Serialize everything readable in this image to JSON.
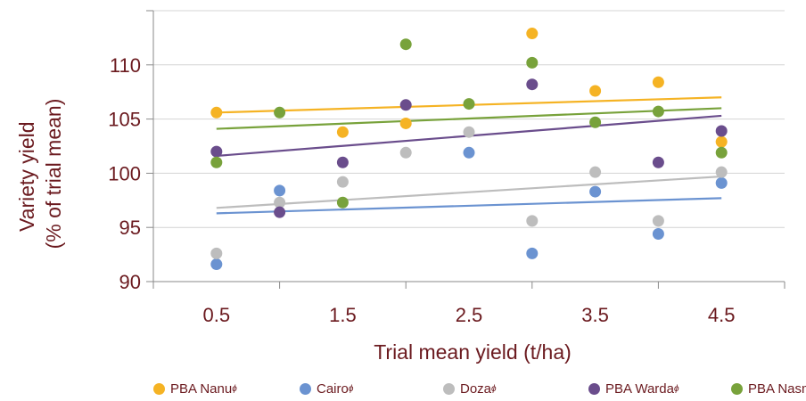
{
  "chart_data": {
    "type": "scatter",
    "xlabel": "Trial mean yield (t/ha)",
    "ylabel_lines": [
      "Variety yield",
      "(% of trial mean)"
    ],
    "x_ticks": [
      "0.5",
      "1.5",
      "2.5",
      "3.5",
      "4.5"
    ],
    "y_ticks": [
      "90",
      "95",
      "100",
      "105",
      "110"
    ],
    "xlim": [
      0,
      5
    ],
    "ylim": [
      90,
      115
    ],
    "grid": "horizontal",
    "legend_position": "bottom",
    "trendlines": true,
    "series": [
      {
        "name": "PBA Nanu",
        "mark": "ϕ",
        "color": "#f5b324",
        "points": [
          [
            0.5,
            105.6
          ],
          [
            1.5,
            103.8
          ],
          [
            2.0,
            104.6
          ],
          [
            3.0,
            112.9
          ],
          [
            3.5,
            107.6
          ],
          [
            4.0,
            108.4
          ],
          [
            4.5,
            102.9
          ]
        ],
        "trend": [
          [
            0.5,
            105.6
          ],
          [
            4.5,
            107.0
          ]
        ]
      },
      {
        "name": "Cairo",
        "mark": "ϕ",
        "color": "#6b93d1",
        "points": [
          [
            0.5,
            91.6
          ],
          [
            1.0,
            98.4
          ],
          [
            2.5,
            101.9
          ],
          [
            3.0,
            92.6
          ],
          [
            3.5,
            98.3
          ],
          [
            4.0,
            94.4
          ],
          [
            4.5,
            99.1
          ]
        ],
        "trend": [
          [
            0.5,
            96.3
          ],
          [
            4.5,
            97.7
          ]
        ]
      },
      {
        "name": "Doza",
        "mark": "ϕ",
        "color": "#bdbdbd",
        "points": [
          [
            0.5,
            92.6
          ],
          [
            1.0,
            97.3
          ],
          [
            1.5,
            99.2
          ],
          [
            2.0,
            101.9
          ],
          [
            2.5,
            103.8
          ],
          [
            3.0,
            95.6
          ],
          [
            3.5,
            100.1
          ],
          [
            4.0,
            95.6
          ],
          [
            4.5,
            100.1
          ]
        ],
        "trend": [
          [
            0.5,
            96.8
          ],
          [
            4.5,
            99.7
          ]
        ]
      },
      {
        "name": "PBA Warda",
        "mark": "ϕ",
        "color": "#6a4d8c",
        "points": [
          [
            0.5,
            102.0
          ],
          [
            1.0,
            96.4
          ],
          [
            1.5,
            101.0
          ],
          [
            2.0,
            106.3
          ],
          [
            3.0,
            108.2
          ],
          [
            4.0,
            101.0
          ],
          [
            4.5,
            103.9
          ]
        ],
        "trend": [
          [
            0.5,
            101.6
          ],
          [
            4.5,
            105.3
          ]
        ]
      },
      {
        "name": "PBA Nasma",
        "mark": "ϕ",
        "color": "#78a23b",
        "points": [
          [
            0.5,
            101.0
          ],
          [
            1.0,
            105.6
          ],
          [
            1.5,
            97.3
          ],
          [
            2.0,
            111.9
          ],
          [
            2.5,
            106.4
          ],
          [
            3.0,
            110.2
          ],
          [
            3.5,
            104.7
          ],
          [
            4.0,
            105.7
          ],
          [
            4.5,
            101.9
          ]
        ],
        "trend": [
          [
            0.5,
            104.1
          ],
          [
            4.5,
            106.0
          ]
        ]
      }
    ]
  }
}
